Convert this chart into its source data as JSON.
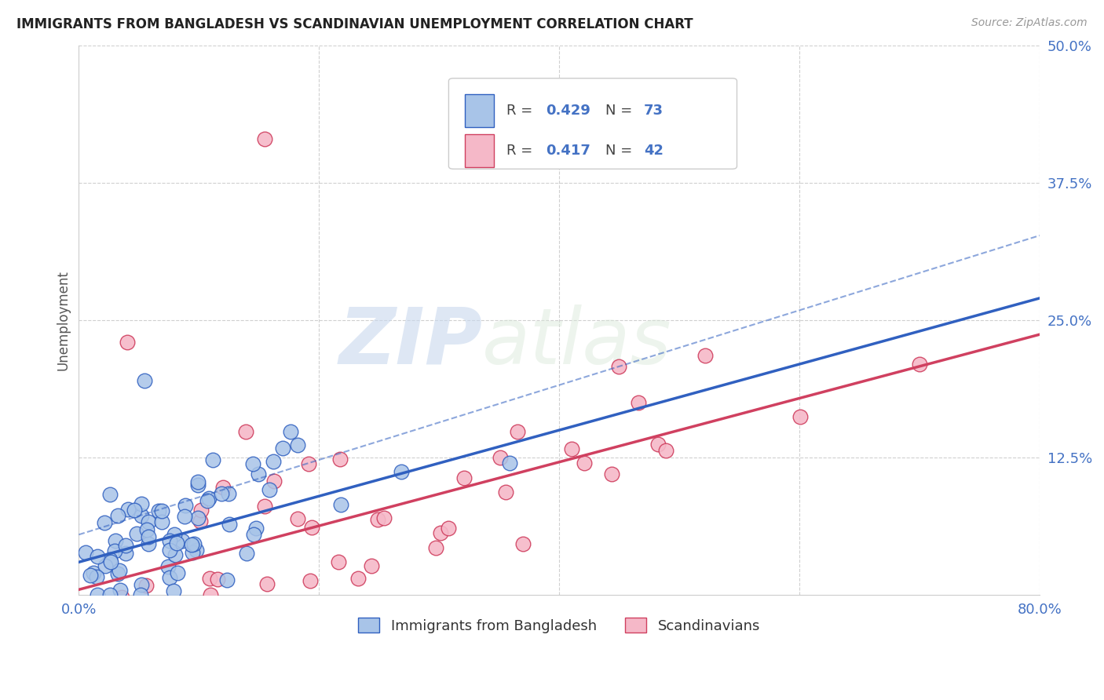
{
  "title": "IMMIGRANTS FROM BANGLADESH VS SCANDINAVIAN UNEMPLOYMENT CORRELATION CHART",
  "source": "Source: ZipAtlas.com",
  "ylabel": "Unemployment",
  "xlim": [
    0.0,
    0.8
  ],
  "ylim": [
    0.0,
    0.5
  ],
  "xticks": [
    0.0,
    0.2,
    0.4,
    0.6,
    0.8
  ],
  "xticklabels": [
    "0.0%",
    "",
    "",
    "",
    "80.0%"
  ],
  "ytick_positions": [
    0.0,
    0.125,
    0.25,
    0.375,
    0.5
  ],
  "ytick_labels_right": [
    "",
    "12.5%",
    "25.0%",
    "37.5%",
    "50.0%"
  ],
  "blue_color": "#a8c4e8",
  "pink_color": "#f5b8c8",
  "blue_line_color": "#3060c0",
  "pink_line_color": "#d04060",
  "legend_number_color": "#4472C4",
  "watermark_zip": "ZIP",
  "watermark_atlas": "atlas",
  "bottom_legend_blue": "Immigrants from Bangladesh",
  "bottom_legend_pink": "Scandinavians",
  "blue_slope": 0.3,
  "blue_intercept": 0.03,
  "pink_slope": 0.29,
  "pink_intercept": 0.005,
  "dash_slope": 0.34,
  "dash_intercept": 0.055,
  "blue_scatter_seed": 42,
  "pink_scatter_seed": 7
}
